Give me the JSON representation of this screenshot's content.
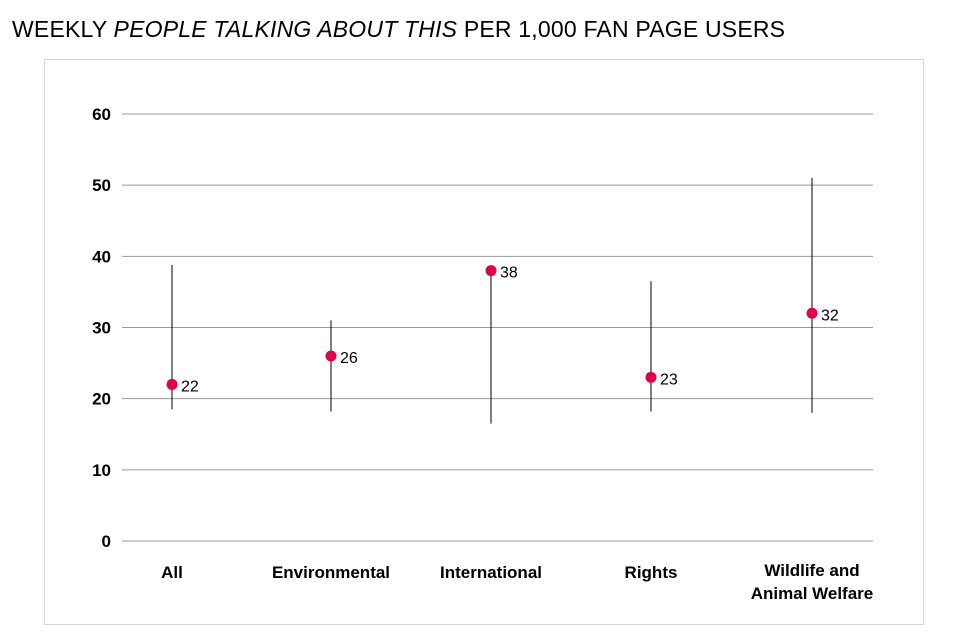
{
  "title": {
    "prefix": "WEEKLY ",
    "emphasis": "PEOPLE TALKING ABOUT THIS",
    "suffix": " PER 1,000 FAN PAGE USERS"
  },
  "colors": {
    "point": "#e0004d",
    "range_line": "#000000",
    "gridline": "#999999",
    "panel_border": "#d7d7d7"
  },
  "chart_data": {
    "type": "scatter",
    "title": "WEEKLY PEOPLE TALKING ABOUT THIS PER 1,000 FAN PAGE USERS",
    "xlabel": "",
    "ylabel": "",
    "ylim": [
      0,
      60
    ],
    "yticks": [
      0,
      10,
      20,
      30,
      40,
      50,
      60
    ],
    "grid": true,
    "categories": [
      [
        "All"
      ],
      [
        "Environmental"
      ],
      [
        "International"
      ],
      [
        "Rights"
      ],
      [
        "Wildlife and",
        "Animal Welfare"
      ]
    ],
    "values": [
      22,
      26,
      38,
      23,
      32
    ],
    "range_low": [
      18.5,
      18.2,
      16.5,
      18.2,
      18
    ],
    "range_high": [
      38.8,
      31,
      38,
      36.5,
      51
    ],
    "data_labels": [
      "22",
      "26",
      "38",
      "23",
      "32"
    ]
  }
}
